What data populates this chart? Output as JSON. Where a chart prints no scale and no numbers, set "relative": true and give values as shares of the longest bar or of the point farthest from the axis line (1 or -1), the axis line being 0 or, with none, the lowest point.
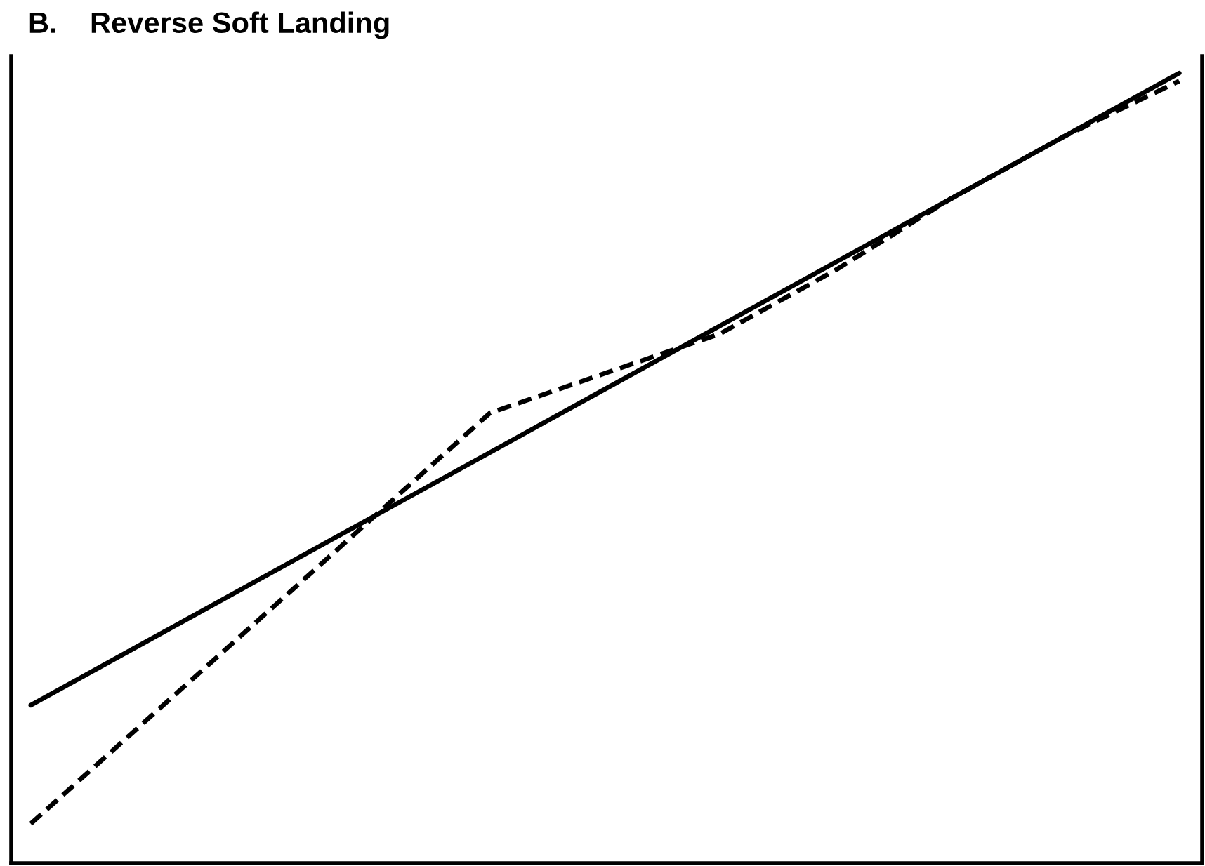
{
  "chart_data": {
    "type": "line",
    "title": "B.    Reverse Soft Landing",
    "relative": true,
    "grid": false,
    "marker": "none",
    "categories": [
      null,
      null,
      null,
      null,
      null,
      null,
      null,
      null,
      null,
      null,
      null
    ],
    "series": [
      {
        "color": "#000000",
        "line_style": "solid",
        "values": [
          0.2,
          0.28,
          0.36,
          0.44,
          0.52,
          0.6,
          0.68,
          0.76,
          0.84,
          0.92,
          1.0
        ]
      },
      {
        "color": "#000000",
        "line_style": "dashed",
        "values": [
          0.05,
          0.18,
          0.31,
          0.44,
          0.57,
          0.62,
          0.67,
          0.75,
          0.84,
          0.92,
          0.99
        ]
      }
    ]
  }
}
